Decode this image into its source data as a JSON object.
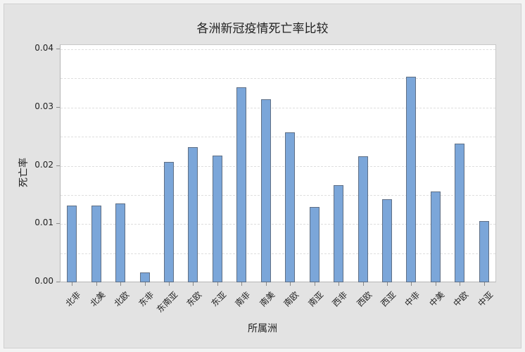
{
  "chart_data": {
    "type": "bar",
    "title": "各洲新冠疫情死亡率比较",
    "xlabel": "所属洲",
    "ylabel": "死亡率",
    "ylim": [
      0,
      0.04
    ],
    "yticks": [
      "0.00",
      "0.01",
      "0.02",
      "0.03",
      "0.04"
    ],
    "grid": true,
    "legend": null,
    "bar_color": "#7ba6d9",
    "categories": [
      "北非",
      "北美",
      "北欧",
      "东非",
      "东南亚",
      "东欧",
      "东亚",
      "南非",
      "南美",
      "南欧",
      "南亚",
      "西非",
      "西欧",
      "西亚",
      "中非",
      "中美",
      "中欧",
      "中亚"
    ],
    "values": [
      0.0131,
      0.0131,
      0.0134,
      0.0016,
      0.0205,
      0.0231,
      0.0216,
      0.0334,
      0.0313,
      0.0256,
      0.0128,
      0.0166,
      0.0215,
      0.0141,
      0.0352,
      0.0155,
      0.0237,
      0.0104
    ]
  }
}
